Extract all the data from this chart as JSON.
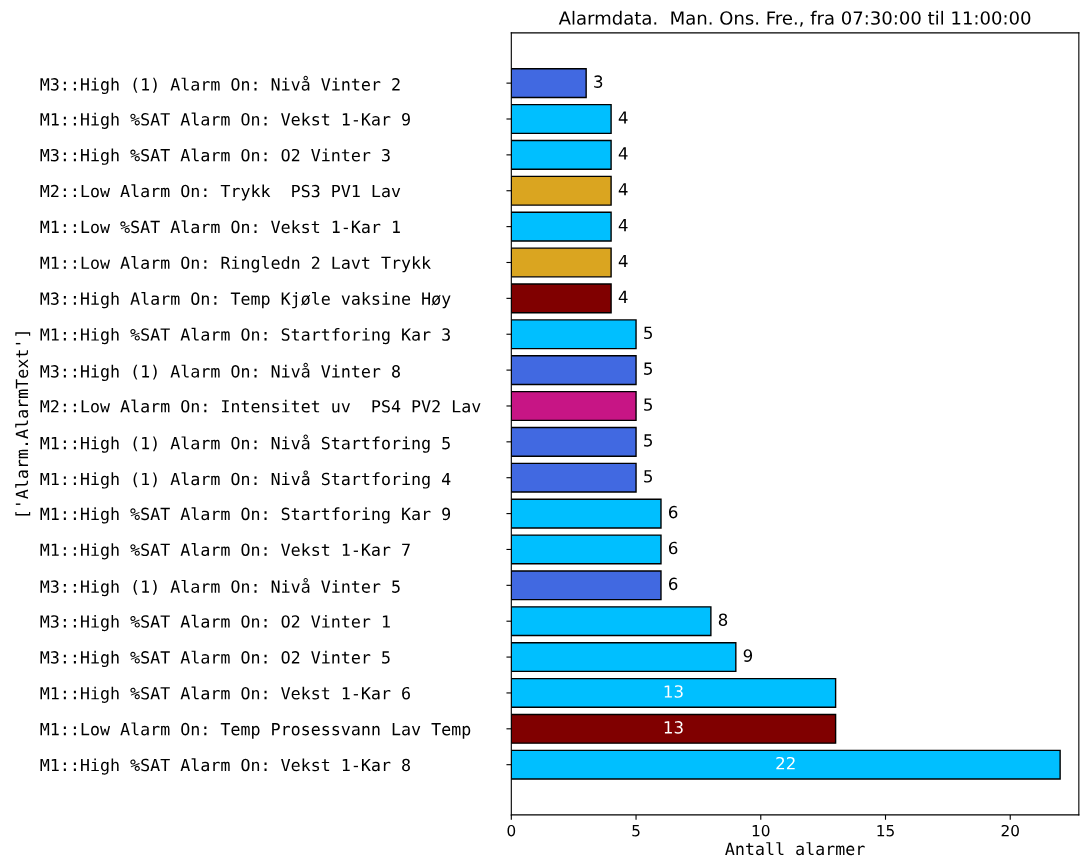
{
  "chart_data": {
    "type": "bar",
    "orientation": "horizontal",
    "title": "Alarmdata.  Man. Ons. Fre., fra 07:30:00 til 11:00:00",
    "xlabel": "Antall alarmer",
    "ylabel": "['Alarm.AlarmText']",
    "categories": [
      "M3::High (1) Alarm On: Nivå Vinter 2",
      "M1::High %SAT Alarm On: Vekst 1-Kar 9",
      "M3::High %SAT Alarm On: O2 Vinter 3",
      "M2::Low Alarm On: Trykk  PS3 PV1 Lav",
      "M1::Low %SAT Alarm On: Vekst 1-Kar 1",
      "M1::Low Alarm On: Ringledn 2 Lavt Trykk",
      "M3::High Alarm On: Temp Kjøle vaksine Høy",
      "M1::High %SAT Alarm On: Startforing Kar 3",
      "M3::High (1) Alarm On: Nivå Vinter 8",
      "M2::Low Alarm On: Intensitet uv  PS4 PV2 Lav",
      "M1::High (1) Alarm On: Nivå Startforing 5",
      "M1::High (1) Alarm On: Nivå Startforing 4",
      "M1::High %SAT Alarm On: Startforing Kar 9",
      "M1::High %SAT Alarm On: Vekst 1-Kar 7",
      "M3::High (1) Alarm On: Nivå Vinter 5",
      "M3::High %SAT Alarm On: O2 Vinter 1",
      "M3::High %SAT Alarm On: O2 Vinter 5",
      "M1::High %SAT Alarm On: Vekst 1-Kar 6",
      "M1::Low Alarm On: Temp Prosessvann Lav Temp",
      "M1::High %SAT Alarm On: Vekst 1-Kar 8"
    ],
    "values": [
      3,
      4,
      4,
      4,
      4,
      4,
      4,
      5,
      5,
      5,
      5,
      5,
      6,
      6,
      6,
      8,
      9,
      13,
      13,
      22
    ],
    "colors": [
      "#4169e1",
      "#00bfff",
      "#00bfff",
      "#daa520",
      "#00bfff",
      "#daa520",
      "#800000",
      "#00bfff",
      "#4169e1",
      "#c71585",
      "#4169e1",
      "#4169e1",
      "#00bfff",
      "#00bfff",
      "#4169e1",
      "#00bfff",
      "#00bfff",
      "#00bfff",
      "#800000",
      "#00bfff"
    ],
    "xlim": [
      0,
      22.75
    ],
    "xticks": [
      0,
      5,
      10,
      15,
      20
    ],
    "data_labels": true,
    "grid": false,
    "legend": false
  }
}
